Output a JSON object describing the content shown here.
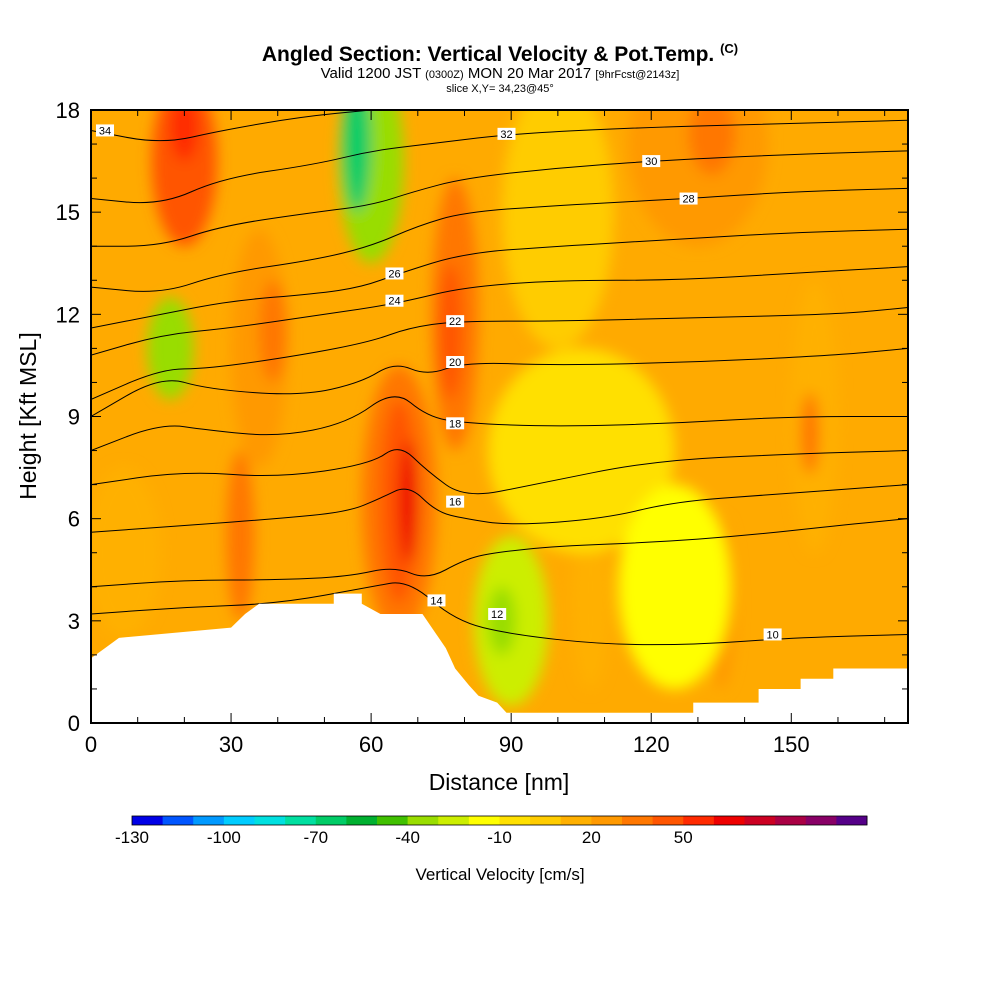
{
  "header": {
    "title": "Angled Section: Vertical Velocity & Pot.Temp.",
    "title_suffix": "(C)",
    "valid_prefix": "Valid 1200 JST",
    "valid_utc": "(0300Z)",
    "valid_date": "MON 20 Mar 2017",
    "forecast": "[9hrFcst@2143z]",
    "slice": "slice X,Y= 34,23@45°"
  },
  "chart_data": {
    "type": "heatmap",
    "xlabel": "Distance [nm]",
    "ylabel": "Height [Kft MSL]",
    "xlim": [
      0,
      175
    ],
    "ylim": [
      0,
      18
    ],
    "x_ticks": [
      0,
      30,
      60,
      90,
      120,
      150
    ],
    "y_ticks": [
      0,
      3,
      6,
      9,
      12,
      15,
      18
    ],
    "terrain": [
      [
        0,
        1.9
      ],
      [
        3,
        2.2
      ],
      [
        6,
        2.5
      ],
      [
        30,
        2.8
      ],
      [
        33,
        3.2
      ],
      [
        36,
        3.5
      ],
      [
        52,
        3.5
      ],
      [
        52,
        3.8
      ],
      [
        58,
        3.8
      ],
      [
        58,
        3.5
      ],
      [
        62,
        3.2
      ],
      [
        71,
        3.2
      ],
      [
        74,
        2.6
      ],
      [
        76,
        2.2
      ],
      [
        78,
        1.6
      ],
      [
        81,
        1.1
      ],
      [
        83,
        0.8
      ],
      [
        87,
        0.6
      ],
      [
        89,
        0.3
      ],
      [
        129,
        0.3
      ],
      [
        129,
        0.6
      ],
      [
        143,
        0.6
      ],
      [
        143,
        1.0
      ],
      [
        152,
        1.0
      ],
      [
        152,
        1.3
      ],
      [
        159,
        1.3
      ],
      [
        159,
        1.6
      ],
      [
        175,
        1.6
      ]
    ],
    "velocity_field": [
      {
        "x": 20,
        "y": 16.5,
        "rx": 7,
        "ry": 2.5,
        "value": 45
      },
      {
        "x": 20,
        "y": 17.5,
        "rx": 3,
        "ry": 1.0,
        "value": 55
      },
      {
        "x": 36,
        "y": 11,
        "rx": 6,
        "ry": 3.5,
        "value": 20
      },
      {
        "x": 39,
        "y": 11.5,
        "rx": 3,
        "ry": 1.5,
        "value": 30
      },
      {
        "x": 78,
        "y": 12,
        "rx": 5,
        "ry": 4,
        "value": 30
      },
      {
        "x": 77,
        "y": 11.5,
        "rx": 2.5,
        "ry": 2,
        "value": 40
      },
      {
        "x": 66,
        "y": 6.5,
        "rx": 8,
        "ry": 4,
        "value": 30
      },
      {
        "x": 66,
        "y": 6.5,
        "rx": 4,
        "ry": 3,
        "value": 45
      },
      {
        "x": 68,
        "y": 6.5,
        "rx": 2,
        "ry": 1.8,
        "value": 60
      },
      {
        "x": 32,
        "y": 5.5,
        "rx": 3,
        "ry": 2.5,
        "value": 30
      },
      {
        "x": 7,
        "y": 5,
        "rx": 8,
        "ry": 2.5,
        "value": 10
      },
      {
        "x": 107,
        "y": 3.5,
        "rx": 4,
        "ry": 2.5,
        "value": 15
      },
      {
        "x": 135,
        "y": 3.5,
        "rx": 3,
        "ry": 2.5,
        "value": 20
      },
      {
        "x": 155,
        "y": 9,
        "rx": 5,
        "ry": 4,
        "value": 15
      },
      {
        "x": 154,
        "y": 8.5,
        "rx": 2,
        "ry": 1.2,
        "value": 30
      },
      {
        "x": 130,
        "y": 17,
        "rx": 15,
        "ry": 3,
        "value": 25
      },
      {
        "x": 133,
        "y": 17.3,
        "rx": 5,
        "ry": 1.2,
        "value": 35
      },
      {
        "x": 100,
        "y": 15,
        "rx": 12,
        "ry": 4,
        "value": 5
      },
      {
        "x": 60,
        "y": 16.5,
        "rx": 7,
        "ry": 3,
        "value": -40
      },
      {
        "x": 57,
        "y": 17,
        "rx": 3,
        "ry": 2,
        "value": -70
      },
      {
        "x": 17,
        "y": 11,
        "rx": 5,
        "ry": 1.5,
        "value": -40
      },
      {
        "x": 90,
        "y": 3,
        "rx": 8,
        "ry": 2.5,
        "value": -30
      },
      {
        "x": 88,
        "y": 3,
        "rx": 3,
        "ry": 1,
        "value": -40
      },
      {
        "x": 105,
        "y": 8,
        "rx": 20,
        "ry": 3,
        "value": -5
      },
      {
        "x": 125,
        "y": 4,
        "rx": 12,
        "ry": 3,
        "value": -20
      }
    ],
    "isentropes": [
      {
        "label": "10",
        "label_at": [
          146,
          2.6
        ],
        "points": [
          [
            0,
            3.2
          ],
          [
            20,
            3.4
          ],
          [
            40,
            3.5
          ],
          [
            60,
            4.0
          ],
          [
            68,
            4.2
          ],
          [
            78,
            3.0
          ],
          [
            90,
            2.6
          ],
          [
            110,
            2.3
          ],
          [
            130,
            2.3
          ],
          [
            150,
            2.5
          ],
          [
            175,
            2.6
          ]
        ]
      },
      {
        "label": "12",
        "label_at": [
          87,
          3.2
        ],
        "points": [
          [
            0,
            4.0
          ],
          [
            20,
            4.2
          ],
          [
            40,
            4.2
          ],
          [
            55,
            4.3
          ],
          [
            65,
            4.6
          ],
          [
            72,
            4.2
          ],
          [
            80,
            4.8
          ],
          [
            86,
            5.0
          ],
          [
            100,
            5.2
          ],
          [
            120,
            5.3
          ],
          [
            140,
            5.5
          ],
          [
            160,
            5.8
          ],
          [
            175,
            6.0
          ]
        ]
      },
      {
        "label": "14",
        "label_at": [
          74,
          3.6
        ],
        "points": [
          [
            0,
            5.6
          ],
          [
            20,
            5.8
          ],
          [
            40,
            6.0
          ],
          [
            55,
            6.2
          ],
          [
            62,
            6.6
          ],
          [
            68,
            7.0
          ],
          [
            74,
            6.2
          ],
          [
            80,
            6.0
          ],
          [
            90,
            5.8
          ],
          [
            110,
            6.0
          ],
          [
            125,
            6.5
          ],
          [
            145,
            6.7
          ],
          [
            175,
            7.0
          ]
        ]
      },
      {
        "label": "16",
        "label_at": [
          78,
          6.5
        ],
        "points": [
          [
            0,
            7.0
          ],
          [
            20,
            7.4
          ],
          [
            40,
            7.2
          ],
          [
            60,
            7.6
          ],
          [
            66,
            8.2
          ],
          [
            72,
            7.4
          ],
          [
            80,
            6.6
          ],
          [
            95,
            7.0
          ],
          [
            120,
            7.7
          ],
          [
            150,
            7.9
          ],
          [
            175,
            8.0
          ]
        ]
      },
      {
        "label": "18",
        "label_at": [
          78,
          8.8
        ],
        "points": [
          [
            0,
            8.0
          ],
          [
            15,
            8.8
          ],
          [
            25,
            8.6
          ],
          [
            40,
            8.4
          ],
          [
            55,
            8.8
          ],
          [
            65,
            9.8
          ],
          [
            72,
            9.0
          ],
          [
            80,
            8.8
          ],
          [
            100,
            8.7
          ],
          [
            125,
            8.8
          ],
          [
            150,
            9.0
          ],
          [
            175,
            9.0
          ]
        ]
      },
      {
        "label": "20",
        "label_at": [
          78,
          10.6
        ],
        "points": [
          [
            0,
            9.0
          ],
          [
            15,
            10.2
          ],
          [
            25,
            9.8
          ],
          [
            45,
            9.6
          ],
          [
            58,
            10.0
          ],
          [
            65,
            10.6
          ],
          [
            72,
            10.2
          ],
          [
            80,
            10.6
          ],
          [
            100,
            10.5
          ],
          [
            130,
            10.6
          ],
          [
            160,
            10.8
          ],
          [
            175,
            11.0
          ]
        ]
      },
      {
        "label": "22",
        "label_at": [
          78,
          11.8
        ],
        "points": [
          [
            0,
            9.5
          ],
          [
            15,
            10.4
          ],
          [
            25,
            10.4
          ],
          [
            45,
            10.8
          ],
          [
            60,
            11.2
          ],
          [
            68,
            11.6
          ],
          [
            78,
            11.8
          ],
          [
            100,
            11.8
          ],
          [
            130,
            11.9
          ],
          [
            160,
            12.0
          ],
          [
            175,
            12.2
          ]
        ]
      },
      {
        "label": "24",
        "label_at": [
          65,
          12.4
        ],
        "points": [
          [
            0,
            10.8
          ],
          [
            15,
            11.4
          ],
          [
            30,
            11.6
          ],
          [
            50,
            12.0
          ],
          [
            60,
            12.2
          ],
          [
            68,
            12.4
          ],
          [
            80,
            12.8
          ],
          [
            100,
            13.0
          ],
          [
            125,
            13.0
          ],
          [
            150,
            13.2
          ],
          [
            175,
            13.4
          ]
        ]
      },
      {
        "label": "26",
        "label_at": [
          65,
          13.2
        ],
        "points": [
          [
            0,
            11.6
          ],
          [
            15,
            12.0
          ],
          [
            30,
            12.4
          ],
          [
            48,
            12.6
          ],
          [
            58,
            12.8
          ],
          [
            66,
            13.2
          ],
          [
            80,
            13.8
          ],
          [
            100,
            14.0
          ],
          [
            125,
            14.2
          ],
          [
            150,
            14.4
          ],
          [
            175,
            14.5
          ]
        ]
      },
      {
        "label": "28",
        "label_at": [
          128,
          15.4
        ],
        "points": [
          [
            0,
            12.8
          ],
          [
            15,
            12.6
          ],
          [
            28,
            13.2
          ],
          [
            48,
            13.6
          ],
          [
            60,
            14.0
          ],
          [
            70,
            14.6
          ],
          [
            80,
            15.0
          ],
          [
            100,
            15.2
          ],
          [
            128,
            15.4
          ],
          [
            150,
            15.6
          ],
          [
            175,
            15.7
          ]
        ]
      },
      {
        "label": "30",
        "label_at": [
          120,
          16.5
        ],
        "points": [
          [
            0,
            14.0
          ],
          [
            15,
            14.0
          ],
          [
            28,
            14.6
          ],
          [
            48,
            15.0
          ],
          [
            60,
            15.2
          ],
          [
            69,
            15.6
          ],
          [
            80,
            16.0
          ],
          [
            100,
            16.3
          ],
          [
            120,
            16.5
          ],
          [
            150,
            16.7
          ],
          [
            175,
            16.8
          ]
        ]
      },
      {
        "label": "32",
        "label_at": [
          89,
          17.3
        ],
        "points": [
          [
            0,
            15.4
          ],
          [
            15,
            15.2
          ],
          [
            28,
            16.0
          ],
          [
            48,
            16.4
          ],
          [
            60,
            16.8
          ],
          [
            72,
            17.0
          ],
          [
            90,
            17.3
          ],
          [
            120,
            17.5
          ],
          [
            150,
            17.6
          ],
          [
            175,
            17.7
          ]
        ]
      },
      {
        "label": "34",
        "label_at": [
          3,
          17.4
        ],
        "points": [
          [
            0,
            17.4
          ],
          [
            15,
            17.0
          ],
          [
            28,
            17.4
          ],
          [
            45,
            17.8
          ],
          [
            60,
            18.0
          ]
        ]
      }
    ],
    "colorbar": {
      "label": "Vertical Velocity [cm/s]",
      "min": -130,
      "step": 10,
      "tick_labels": [
        "-130",
        "-100",
        "-70",
        "-40",
        "-10",
        "20",
        "50"
      ],
      "colors": [
        "#0000e6",
        "#0055ff",
        "#0099ff",
        "#00ccff",
        "#00e0e0",
        "#00dfa0",
        "#00cc66",
        "#00b030",
        "#40c000",
        "#99dd00",
        "#ccee00",
        "#ffff00",
        "#ffe000",
        "#ffcc00",
        "#ffb000",
        "#ff9900",
        "#ff7700",
        "#ff5500",
        "#ff2a00",
        "#ee0000",
        "#cc0022",
        "#aa0044",
        "#880066",
        "#550088"
      ]
    }
  }
}
